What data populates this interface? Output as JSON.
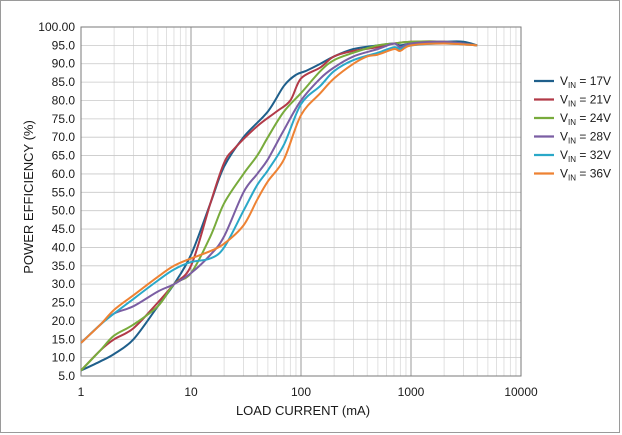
{
  "chart_data": {
    "type": "line",
    "title": "",
    "xlabel": "LOAD CURRENT (mA)",
    "ylabel": "POWER EFFICIENCY (%)",
    "xscale": "log",
    "xlim": [
      1,
      10000
    ],
    "ylim": [
      5,
      100
    ],
    "grid": true,
    "legend_position": "right",
    "x_ticks": [
      1,
      10,
      100,
      1000,
      10000
    ],
    "x_tick_labels": [
      "1",
      "10",
      "100",
      "1000",
      "10000"
    ],
    "y_tick_labels": [
      "100.00",
      "95.0",
      "90.0",
      "85.0",
      "80.0",
      "75.0",
      "70.0",
      "65.0",
      "60.0",
      "55.0",
      "50.0",
      "45.0",
      "40.0",
      "35.0",
      "30.0",
      "25.0",
      "20.0",
      "15.0",
      "10.0",
      "5.0"
    ],
    "series": [
      {
        "name": "17V",
        "color": "#1f5f8b",
        "x": [
          1,
          1.5,
          2,
          3,
          5,
          7,
          10,
          15,
          20,
          30,
          50,
          70,
          90,
          110,
          150,
          200,
          300,
          500,
          700,
          800,
          1000,
          1500,
          2000,
          3000,
          4000
        ],
        "y": [
          6.5,
          9,
          11,
          15,
          24,
          30,
          38,
          52,
          62,
          70,
          77,
          84,
          87,
          88,
          90,
          92,
          94,
          95,
          95.5,
          95,
          95.5,
          95.8,
          96,
          96,
          95
        ]
      },
      {
        "name": "21V",
        "color": "#b23a48",
        "x": [
          1,
          1.5,
          2,
          3,
          5,
          7,
          10,
          15,
          20,
          25,
          40,
          60,
          80,
          100,
          150,
          200,
          300,
          500,
          700,
          1000,
          2000,
          4000
        ],
        "y": [
          6.5,
          12,
          15,
          18,
          25,
          30,
          35,
          52,
          63,
          67,
          73,
          77,
          80,
          86,
          89,
          92,
          93.5,
          94.5,
          95.5,
          96,
          96,
          95
        ]
      },
      {
        "name": "24V",
        "color": "#78ab3c",
        "x": [
          1,
          1.5,
          2,
          3,
          5,
          7,
          10,
          15,
          20,
          30,
          40,
          50,
          70,
          100,
          150,
          200,
          300,
          500,
          700,
          1000,
          2000,
          4000
        ],
        "y": [
          6.5,
          12,
          16,
          19,
          24,
          30,
          33,
          43,
          52,
          60,
          65,
          70,
          77,
          82,
          88,
          91,
          93,
          95,
          95.5,
          96,
          96,
          95
        ]
      },
      {
        "name": "28V",
        "color": "#7b5ea3",
        "x": [
          1,
          1.5,
          2,
          3,
          5,
          7,
          10,
          15,
          20,
          30,
          40,
          50,
          70,
          100,
          150,
          200,
          300,
          500,
          700,
          800,
          1000,
          2000,
          4000
        ],
        "y": [
          14,
          19,
          22,
          24,
          28,
          30,
          33,
          38,
          43,
          55,
          60,
          64,
          72,
          80,
          86,
          89,
          92,
          94,
          95.5,
          94.5,
          95.5,
          96,
          95
        ]
      },
      {
        "name": "32V",
        "color": "#2aa8c8",
        "x": [
          1,
          1.5,
          2,
          3,
          5,
          7,
          10,
          15,
          20,
          30,
          40,
          50,
          70,
          100,
          150,
          200,
          300,
          500,
          700,
          800,
          1000,
          2000,
          4000
        ],
        "y": [
          14,
          19,
          22,
          26,
          31,
          34,
          36,
          37,
          40,
          50,
          57,
          61,
          68,
          79,
          84,
          88,
          91,
          93,
          94.5,
          94,
          95,
          95.5,
          95
        ]
      },
      {
        "name": "36V",
        "color": "#ee8233",
        "x": [
          1,
          1.5,
          2,
          3,
          5,
          7,
          10,
          15,
          20,
          30,
          40,
          50,
          70,
          100,
          150,
          200,
          300,
          400,
          500,
          700,
          800,
          1000,
          2000,
          4000
        ],
        "y": [
          14,
          19,
          23,
          27,
          32,
          35,
          37,
          39,
          41,
          46,
          53,
          58,
          64,
          76,
          82,
          86,
          90,
          92,
          92.5,
          94,
          93.5,
          95,
          95.5,
          95
        ]
      }
    ],
    "legend_prefix_main": "V",
    "legend_prefix_sub": "IN",
    "legend_separator": " = "
  }
}
